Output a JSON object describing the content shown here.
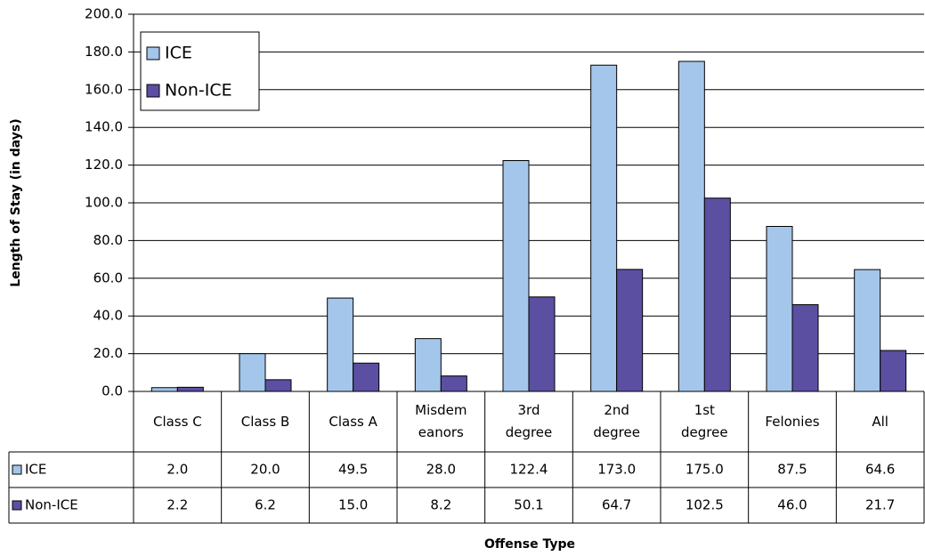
{
  "chart_data": {
    "type": "bar",
    "y_label": "Length of Stay (in days)",
    "x_label": "Offense Type",
    "categories": [
      "Class C",
      "Class B",
      "Class A",
      "Misdemeanors",
      "3rd degree",
      "2nd degree",
      "1st degree",
      "Felonies",
      "All"
    ],
    "series": [
      {
        "name": "ICE",
        "color": "#a4c6ea",
        "values": [
          2.0,
          20.0,
          49.5,
          28.0,
          122.4,
          173.0,
          175.0,
          87.5,
          64.6
        ],
        "value_labels": [
          "2.0",
          "20.0",
          "49.5",
          "28.0",
          "122.4",
          "173.0",
          "175.0",
          "87.5",
          "64.6"
        ]
      },
      {
        "name": "Non-ICE",
        "color": "#5b4fa2",
        "values": [
          2.2,
          6.2,
          15.0,
          8.2,
          50.1,
          64.7,
          102.5,
          46.0,
          21.7
        ],
        "value_labels": [
          "2.2",
          "6.2",
          "15.0",
          "8.2",
          "50.1",
          "64.7",
          "102.5",
          "46.0",
          "21.7"
        ]
      }
    ],
    "ylim": [
      0,
      200
    ],
    "yticks": [
      {
        "value": 0,
        "label": "0.0"
      },
      {
        "value": 20,
        "label": "20.0"
      },
      {
        "value": 40,
        "label": "40.0"
      },
      {
        "value": 60,
        "label": "60.0"
      },
      {
        "value": 80,
        "label": "80.0"
      },
      {
        "value": 100,
        "label": "100.0"
      },
      {
        "value": 120,
        "label": "120.0"
      },
      {
        "value": 140,
        "label": "140.0"
      },
      {
        "value": 160,
        "label": "160.0"
      },
      {
        "value": 180,
        "label": "180.0"
      },
      {
        "value": 200,
        "label": "200.0"
      }
    ],
    "grid": true,
    "legend": "top-left"
  }
}
